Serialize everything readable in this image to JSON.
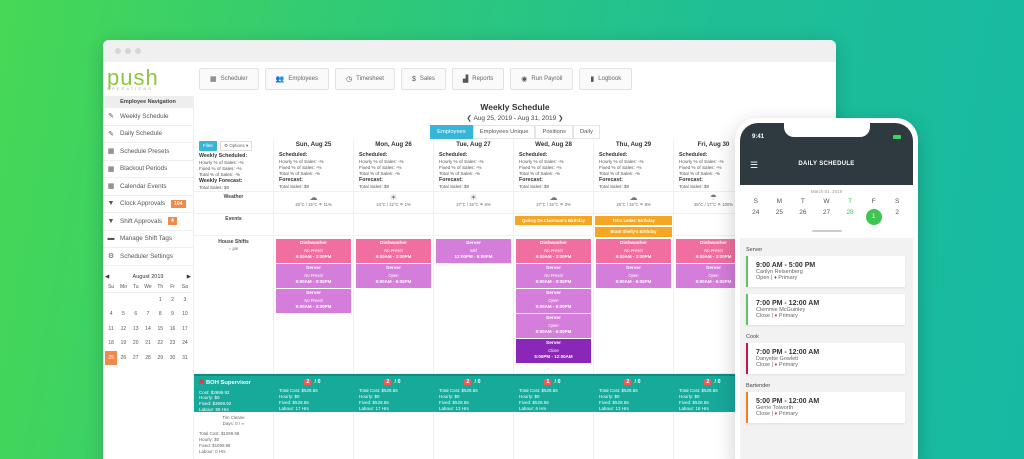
{
  "app": {
    "logo_main": "push",
    "logo_sub": "OPERATIONS"
  },
  "topnav": [
    {
      "icon": "calendar-icon",
      "glyph": "▦",
      "label": "Scheduler"
    },
    {
      "icon": "people-icon",
      "glyph": "👥",
      "label": "Employees"
    },
    {
      "icon": "clock-icon",
      "glyph": "◷",
      "label": "Timesheet"
    },
    {
      "icon": "dollar-icon",
      "glyph": "$",
      "label": "Sales"
    },
    {
      "icon": "chart-icon",
      "glyph": "▟",
      "label": "Reports"
    },
    {
      "icon": "play-icon",
      "glyph": "◉",
      "label": "Run Payroll"
    },
    {
      "icon": "book-icon",
      "glyph": "▮",
      "label": "Logbook"
    }
  ],
  "sidebar": {
    "title": "Employee Navigation",
    "items": [
      {
        "icon": "pencil-icon",
        "glyph": "✎",
        "label": "Weekly Schedule"
      },
      {
        "icon": "pencil-icon",
        "glyph": "✎",
        "label": "Daily Schedule"
      },
      {
        "icon": "calendar-icon",
        "glyph": "▦",
        "label": "Schedule Presets"
      },
      {
        "icon": "calendar-icon",
        "glyph": "▦",
        "label": "Blackout Periods"
      },
      {
        "icon": "calendar-icon",
        "glyph": "▦",
        "label": "Calendar Events"
      },
      {
        "icon": "filter-icon",
        "glyph": "▼",
        "label": "Clock Approvals",
        "badge": "104"
      },
      {
        "icon": "filter-icon",
        "glyph": "▼",
        "label": "Shift Approvals",
        "badge": "4"
      },
      {
        "icon": "tag-icon",
        "glyph": "▬",
        "label": "Manage Shift Tags"
      },
      {
        "icon": "gear-icon",
        "glyph": "⚙",
        "label": "Scheduler Settings"
      }
    ]
  },
  "mini_calendar": {
    "month": "August 2019",
    "prev": "◀",
    "next": "▶",
    "dow": [
      "Su",
      "Mo",
      "Tu",
      "We",
      "Th",
      "Fr",
      "Sa"
    ],
    "days": [
      "",
      "",
      "",
      "",
      "1",
      "2",
      "3",
      "4",
      "5",
      "6",
      "7",
      "8",
      "9",
      "10",
      "11",
      "12",
      "13",
      "14",
      "15",
      "16",
      "17",
      "18",
      "19",
      "20",
      "21",
      "22",
      "23",
      "24",
      "25",
      "26",
      "27",
      "28",
      "29",
      "30",
      "31"
    ],
    "selected": "25"
  },
  "schedule": {
    "title": "Weekly Schedule",
    "range": "Aug 25, 2019 - Aug 31, 2019",
    "prev": "❮",
    "next": "❯",
    "tabs": [
      "Employees",
      "Employees Unique",
      "Positions",
      "Daily"
    ],
    "active_tab": "Employees",
    "filter_label": "Filter",
    "options_label": "⚙ Options ▾",
    "summary": {
      "scheduled_label": "Weekly Scheduled:",
      "hourly": "Hourly % of Sales: -%",
      "fixed": "Fixed % of Sales: -%",
      "total": "Total % of Sales: -%",
      "forecast_label": "Weekly Forecast:",
      "total_sales": "Total Sales: $0"
    },
    "row_labels": {
      "weather": "Weather",
      "events": "Events",
      "house_shifts": "House Shifts",
      "house_sub": "○ pin"
    },
    "days": [
      {
        "title": "Sun, Aug 25",
        "scheduled": "Scheduled:",
        "hourly": "Hourly % of Sales: -%",
        "fixed": "Fixed % of Sales: -%",
        "total": "Total % of Sales: -%",
        "forecast": "Forecast:",
        "sales": "Total Sales: $0",
        "weather_icon": "☁",
        "weather": "20°C / 15°C  ☂ 11%",
        "events": []
      },
      {
        "title": "Mon, Aug 26",
        "scheduled": "Scheduled:",
        "hourly": "Hourly % of Sales: -%",
        "fixed": "Fixed % of Sales: -%",
        "total": "Total % of Sales: -%",
        "forecast": "Forecast:",
        "sales": "Total Sales: $0",
        "weather_icon": "☀",
        "weather": "24°C / 12°C  ☂ 1%",
        "events": []
      },
      {
        "title": "Tue, Aug 27",
        "scheduled": "Scheduled:",
        "hourly": "Hourly % of Sales: -%",
        "fixed": "Fixed % of Sales: -%",
        "total": "Total % of Sales: -%",
        "forecast": "Forecast:",
        "sales": "Total Sales: $0",
        "weather_icon": "☀",
        "weather": "27°C / 15°C  ☂ 6%",
        "events": []
      },
      {
        "title": "Wed, Aug 28",
        "scheduled": "Scheduled:",
        "hourly": "Hourly % of Sales: -%",
        "fixed": "Fixed % of Sales: -%",
        "total": "Total % of Sales: -%",
        "forecast": "Forecast:",
        "sales": "Total Sales: $0",
        "weather_icon": "☁",
        "weather": "27°C / 15°C  ☂ 3%",
        "events": [
          "Quincy De Clairmont's Birthday"
        ]
      },
      {
        "title": "Thu, Aug 29",
        "scheduled": "Scheduled:",
        "hourly": "Hourly % of Sales: -%",
        "fixed": "Fixed % of Sales: -%",
        "total": "Total % of Sales: -%",
        "forecast": "Forecast:",
        "sales": "Total Sales: $0",
        "weather_icon": "☁",
        "weather": "26°C / 15°C  ☂ 8%",
        "events": [
          "Terra Ledes' Birthday",
          "Brant Shelly's Birthday"
        ]
      },
      {
        "title": "Fri, Aug 30",
        "scheduled": "Scheduled:",
        "hourly": "Hourly % of Sales: -%",
        "fixed": "Fixed % of Sales: -%",
        "total": "Total % of Sales: -%",
        "forecast": "Forecast:",
        "sales": "Total Sales: $0",
        "weather_icon": "☂",
        "weather": "25°C / 17°C  ☂ 100%",
        "events": []
      }
    ],
    "shifts": [
      [
        {
          "role": "Dishwasher",
          "note": "No Preset",
          "time": "9:00AM - 3:00PM",
          "color": "pink"
        },
        {
          "role": "Server",
          "note": "No Preset",
          "time": "9:00AM - 3:00PM",
          "color": "lav"
        },
        {
          "role": "Server",
          "note": "No Preset",
          "time": "9:00AM - 3:00PM",
          "color": "lav"
        }
      ],
      [
        {
          "role": "Dishwasher",
          "note": "No Preset",
          "time": "9:00AM - 3:00PM",
          "color": "pink"
        },
        {
          "role": "Server",
          "note": "Open",
          "time": "9:00AM - 6:00PM",
          "color": "lav"
        }
      ],
      [
        {
          "role": "Server",
          "note": "Mid",
          "time": "12:00PM - 5:00PM",
          "color": "lav"
        }
      ],
      [
        {
          "role": "Dishwasher",
          "note": "No Preset",
          "time": "9:00AM - 3:00PM",
          "color": "pink"
        },
        {
          "role": "Server",
          "note": "No Preset",
          "time": "9:00AM - 3:00PM",
          "color": "lav"
        },
        {
          "role": "Server",
          "note": "Open",
          "time": "9:00AM - 6:00PM",
          "color": "lav"
        },
        {
          "role": "Server",
          "note": "Open",
          "time": "9:00AM - 6:00PM",
          "color": "lav"
        },
        {
          "role": "Server",
          "note": "Close",
          "time": "5:00PM - 12:00AM",
          "color": "purp"
        }
      ],
      [
        {
          "role": "Dishwasher",
          "note": "No Preset",
          "time": "9:00AM - 3:00PM",
          "color": "pink"
        },
        {
          "role": "Server",
          "note": "Open",
          "time": "9:00AM - 6:00PM",
          "color": "lav"
        }
      ],
      [
        {
          "role": "Dishwasher",
          "note": "No Preset",
          "time": "9:00AM - 3:00PM",
          "color": "pink"
        },
        {
          "role": "Server",
          "note": "Open",
          "time": "9:00AM - 6:00PM",
          "color": "lav"
        }
      ]
    ],
    "boh": {
      "title": "BOH Supervisor",
      "summary": [
        "Cost: $3699.92",
        "Hourly: $0",
        "Fixed: $3699.92",
        "Labour: 88 Hrs"
      ],
      "days": [
        {
          "count": "2",
          "of": "/ 0",
          "lines": [
            "Total Cost: $528.56",
            "Hourly: $0",
            "Fixed: $528.56",
            "Labour: 17 Hrs"
          ]
        },
        {
          "count": "2",
          "of": "/ 0",
          "lines": [
            "Total Cost: $528.56",
            "Hourly: $0",
            "Fixed: $528.56",
            "Labour: 17 Hrs"
          ]
        },
        {
          "count": "2",
          "of": "/ 0",
          "lines": [
            "Total Cost: $528.56",
            "Hourly: $0",
            "Fixed: $528.56",
            "Labour: 13 Hrs"
          ]
        },
        {
          "count": "1",
          "of": "/ 0",
          "lines": [
            "Total Cost: $528.56",
            "Hourly: $0",
            "Fixed: $528.56",
            "Labour: 6 Hrs"
          ]
        },
        {
          "count": "2",
          "of": "/ 0",
          "lines": [
            "Total Cost: $528.56",
            "Hourly: $0",
            "Fixed: $528.56",
            "Labour: 13 Hrs"
          ]
        },
        {
          "count": "2",
          "of": "/ 0",
          "lines": [
            "Total Cost: $528.56",
            "Hourly: $0",
            "Fixed: $528.56",
            "Labour: 18 Hrs"
          ]
        }
      ]
    },
    "employee": {
      "name": "Tim Cleane",
      "days": "Days: 0 / ∞",
      "lines": [
        "Total Cost: $1099.98",
        "Hourly: $0",
        "Fixed: $1099.98",
        "Labour: 0 Hrs"
      ]
    }
  },
  "phone": {
    "time": "9:41",
    "title": "DAILY SCHEDULE",
    "date": "March 01, 2019",
    "dow": [
      "S",
      "M",
      "T",
      "W",
      "T",
      "F",
      "S"
    ],
    "days": [
      "24",
      "25",
      "26",
      "27",
      "28",
      "1",
      "2"
    ],
    "today_index": 5,
    "highlight_index": 4,
    "sections": [
      {
        "title": "Server",
        "cards": [
          {
            "time": "9:00 AM - 5:00 PM",
            "name": "Carilyn Reisenberg",
            "tag": "Open |",
            "primary": "Primary",
            "accent": "green"
          },
          {
            "time": "7:00 PM - 12:00 AM",
            "name": "Clemmie McGuinley",
            "tag": "Close |",
            "primary": "Primary",
            "accent": "green"
          }
        ]
      },
      {
        "title": "Cook",
        "cards": [
          {
            "time": "7:00 PM - 12:00 AM",
            "name": "Danyette Gowlett",
            "tag": "Close |",
            "primary": "Primary",
            "accent": "red"
          }
        ]
      },
      {
        "title": "Bartender",
        "cards": [
          {
            "time": "5:00 PM - 12:00 AM",
            "name": "Gerrie Tolworth",
            "tag": "Close |",
            "primary": "Primary",
            "accent": "orange"
          }
        ]
      }
    ]
  }
}
